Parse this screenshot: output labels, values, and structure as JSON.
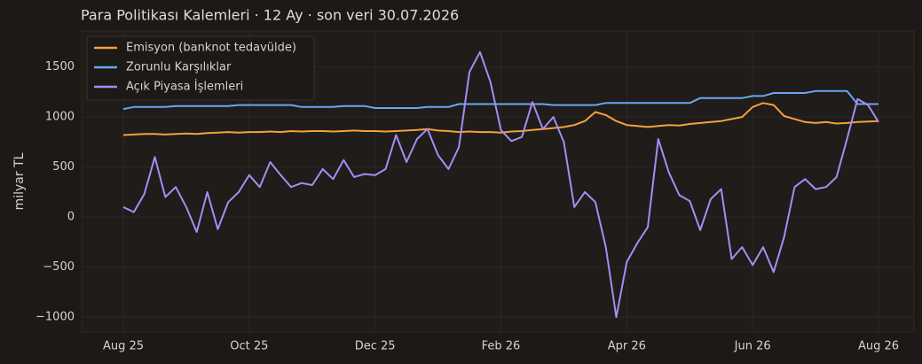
{
  "chart_data": {
    "type": "line",
    "title": "Para Politikası Kalemleri · 12 Ay · son veri 30.07.2026",
    "y_label": "milyar TL",
    "categories": [
      "Aug 25",
      null,
      null,
      null,
      null,
      null,
      null,
      null,
      null,
      null,
      null,
      null,
      "Oct 25",
      null,
      null,
      null,
      null,
      null,
      null,
      null,
      null,
      null,
      null,
      null,
      "Dec 25",
      null,
      null,
      null,
      null,
      null,
      null,
      null,
      null,
      null,
      null,
      null,
      "Feb 26",
      null,
      null,
      null,
      null,
      null,
      null,
      null,
      null,
      null,
      null,
      null,
      "Apr 26",
      null,
      null,
      null,
      null,
      null,
      null,
      null,
      null,
      null,
      null,
      null,
      "Jun 26",
      null,
      null,
      null,
      null,
      null,
      null,
      null,
      null,
      null,
      null,
      null,
      "Aug 26"
    ],
    "series": [
      {
        "name": "Emisyon (banknot tedavülde)",
        "color": "#f5a03c",
        "values": [
          820,
          825,
          830,
          830,
          825,
          830,
          835,
          830,
          840,
          845,
          850,
          845,
          850,
          850,
          855,
          850,
          860,
          855,
          860,
          860,
          855,
          860,
          865,
          860,
          860,
          855,
          860,
          865,
          870,
          880,
          865,
          860,
          850,
          855,
          850,
          850,
          845,
          855,
          860,
          870,
          880,
          890,
          900,
          920,
          960,
          1050,
          1020,
          960,
          920,
          910,
          900,
          910,
          920,
          915,
          930,
          940,
          950,
          960,
          980,
          1000,
          1100,
          1140,
          1120,
          1010,
          980,
          950,
          940,
          950,
          935,
          940,
          950,
          955,
          960
        ]
      },
      {
        "name": "Zorunlu Karşılıklar",
        "color": "#6aa6f0",
        "values": [
          1080,
          1100,
          1100,
          1100,
          1100,
          1110,
          1110,
          1110,
          1110,
          1110,
          1110,
          1120,
          1120,
          1120,
          1120,
          1120,
          1120,
          1100,
          1100,
          1100,
          1100,
          1110,
          1110,
          1110,
          1090,
          1090,
          1090,
          1090,
          1090,
          1100,
          1100,
          1100,
          1130,
          1130,
          1130,
          1130,
          1130,
          1130,
          1130,
          1130,
          1130,
          1120,
          1120,
          1120,
          1120,
          1120,
          1140,
          1140,
          1140,
          1140,
          1140,
          1140,
          1140,
          1140,
          1140,
          1190,
          1190,
          1190,
          1190,
          1190,
          1210,
          1210,
          1240,
          1240,
          1240,
          1240,
          1260,
          1260,
          1260,
          1260,
          1130,
          1130,
          1130
        ]
      },
      {
        "name": "Açık Piyasa İşlemleri",
        "color": "#a98bf5",
        "values": [
          100,
          50,
          230,
          600,
          200,
          300,
          100,
          -150,
          250,
          -120,
          150,
          250,
          420,
          300,
          550,
          420,
          300,
          340,
          320,
          480,
          380,
          570,
          400,
          430,
          420,
          480,
          820,
          550,
          780,
          880,
          620,
          480,
          700,
          1450,
          1650,
          1350,
          870,
          760,
          800,
          1150,
          880,
          1000,
          750,
          100,
          250,
          150,
          -300,
          -1000,
          -450,
          -260,
          -100,
          780,
          450,
          220,
          160,
          -130,
          180,
          280,
          -420,
          -300,
          -480,
          -300,
          -550,
          -200,
          300,
          380,
          280,
          300,
          400,
          780,
          1180,
          1120,
          950
        ]
      }
    ],
    "ylim": [
      -1150,
      1860
    ],
    "yticks": [
      {
        "value": -1000,
        "label": "−1000"
      },
      {
        "value": -500,
        "label": "−500"
      },
      0,
      500,
      1000,
      1500
    ],
    "grid": true,
    "legend": "upper left"
  }
}
